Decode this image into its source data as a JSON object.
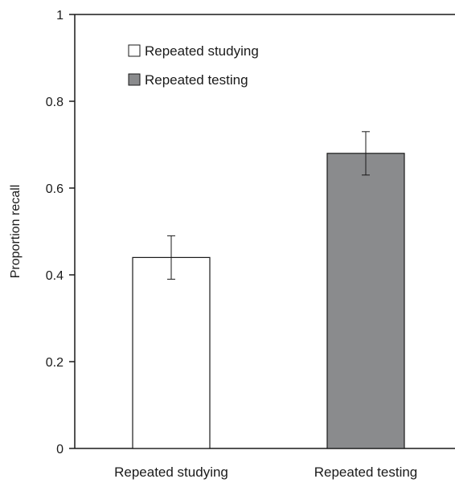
{
  "chart_data": {
    "type": "bar",
    "title": "",
    "xlabel": "",
    "ylabel": "Proportion recall",
    "ylim": [
      0,
      1
    ],
    "yticks": [
      "0",
      "0.2",
      "0.4",
      "0.6",
      "0.8",
      "1"
    ],
    "ytick_values": [
      0,
      0.2,
      0.4,
      0.6,
      0.8,
      1
    ],
    "categories": [
      "Repeated studying",
      "Repeated testing"
    ],
    "values": [
      0.44,
      0.68
    ],
    "error": [
      0.05,
      0.05
    ],
    "colors": [
      "#ffffff",
      "#8a8b8d"
    ],
    "grid": false,
    "legend": {
      "placement": "top-left",
      "entries": [
        {
          "label": "Repeated studying",
          "color": "#ffffff"
        },
        {
          "label": "Repeated testing",
          "color": "#8a8b8d"
        }
      ]
    }
  }
}
